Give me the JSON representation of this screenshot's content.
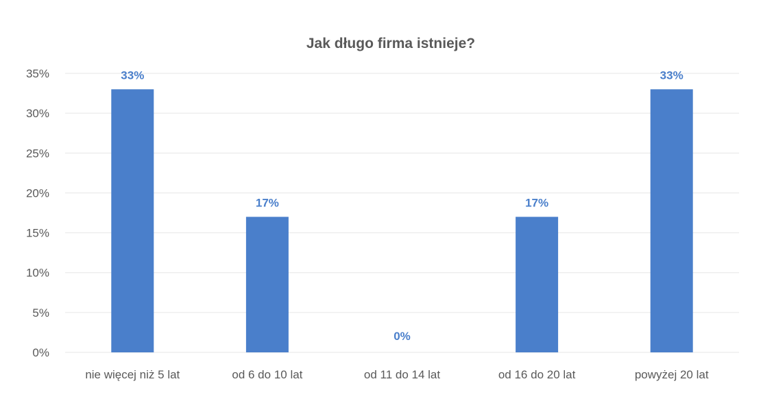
{
  "chart_data": {
    "type": "bar",
    "title": "Jak długo firma istnieje?",
    "categories": [
      "nie więcej niż 5 lat",
      "od 6 do 10 lat",
      "od 11 do 14 lat",
      "od 16 do 20 lat",
      "powyżej 20 lat"
    ],
    "values": [
      33,
      17,
      0,
      17,
      33
    ],
    "data_labels": [
      "33%",
      "17%",
      "0%",
      "17%",
      "33%"
    ],
    "xlabel": "",
    "ylabel": "",
    "ylim": [
      0,
      35
    ],
    "yticks": [
      0,
      5,
      10,
      15,
      20,
      25,
      30,
      35
    ],
    "ytick_labels": [
      "0%",
      "5%",
      "10%",
      "15%",
      "20%",
      "25%",
      "30%",
      "35%"
    ],
    "grid": true,
    "legend": "none",
    "colors": {
      "bar": "#4a7fcb",
      "data_label": "#4a7fcb",
      "text": "#595959",
      "grid": "#e6e6e6"
    }
  }
}
